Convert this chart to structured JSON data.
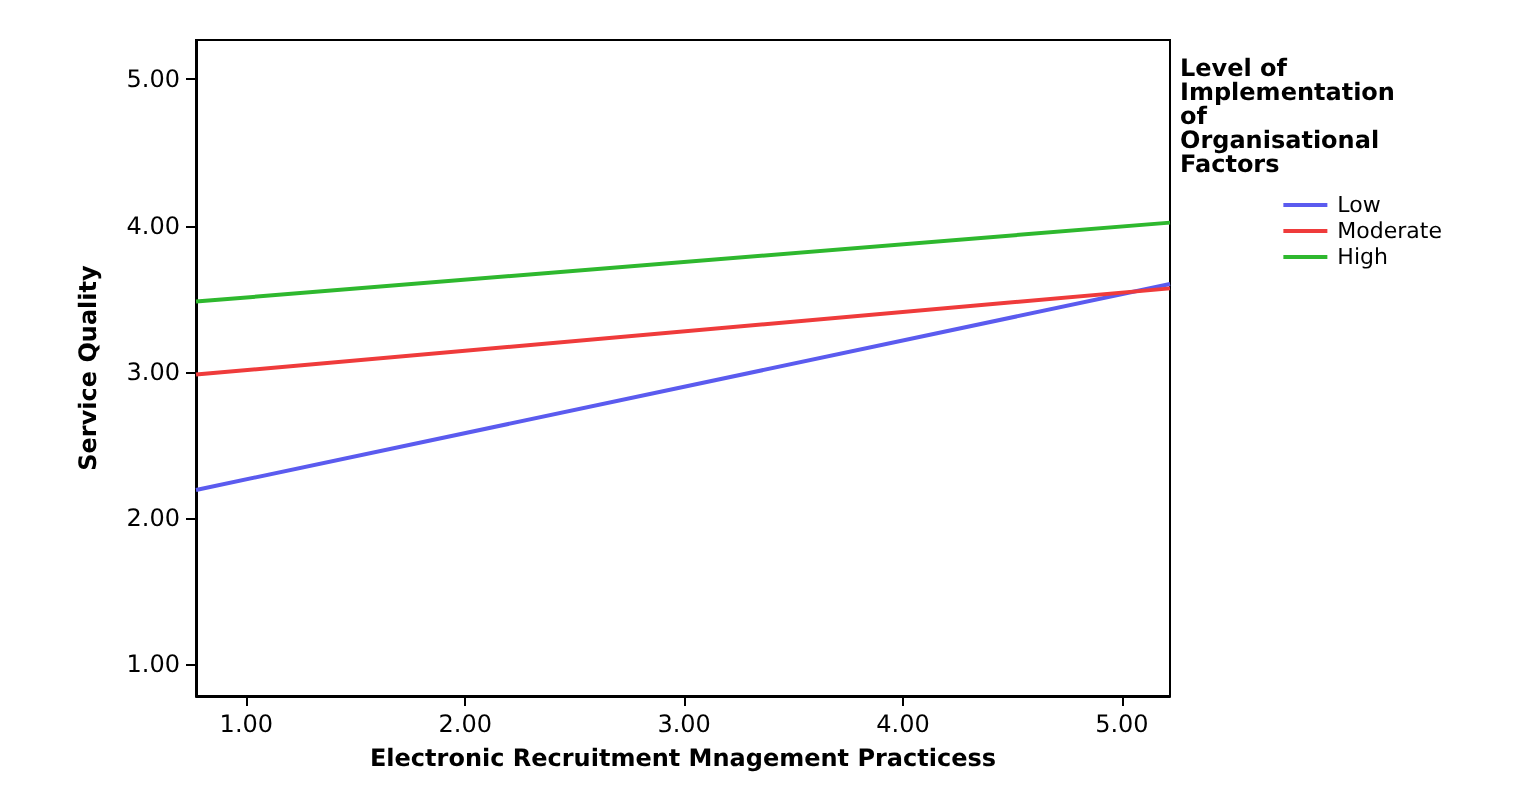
{
  "chart_data": {
    "type": "line",
    "xlabel": "Electronic Recruitment Mnagement Practicess",
    "ylabel": "Service Quality",
    "legend_title": "Level of Implementation of Organisational Factors",
    "x": [
      0.77,
      5.22
    ],
    "series": [
      {
        "name": "Low",
        "color": "#5b5bef",
        "values": [
          2.19,
          3.6
        ]
      },
      {
        "name": "Moderate",
        "color": "#ef3b3b",
        "values": [
          2.98,
          3.57
        ]
      },
      {
        "name": "High",
        "color": "#2eb82e",
        "values": [
          3.48,
          4.02
        ]
      }
    ],
    "xlim": [
      0.77,
      5.22
    ],
    "ylim": [
      0.78,
      5.27
    ],
    "xticks": [
      {
        "value": 1,
        "label": "1.00"
      },
      {
        "value": 2,
        "label": "2.00"
      },
      {
        "value": 3,
        "label": "3.00"
      },
      {
        "value": 4,
        "label": "4.00"
      },
      {
        "value": 5,
        "label": "5.00"
      }
    ],
    "yticks": [
      {
        "value": 1,
        "label": "1.00"
      },
      {
        "value": 2,
        "label": "2.00"
      },
      {
        "value": 3,
        "label": "3.00"
      },
      {
        "value": 4,
        "label": "4.00"
      },
      {
        "value": 5,
        "label": "5.00"
      }
    ],
    "grid": false,
    "legend": "top right",
    "marker": "none",
    "line_style": "solid"
  }
}
